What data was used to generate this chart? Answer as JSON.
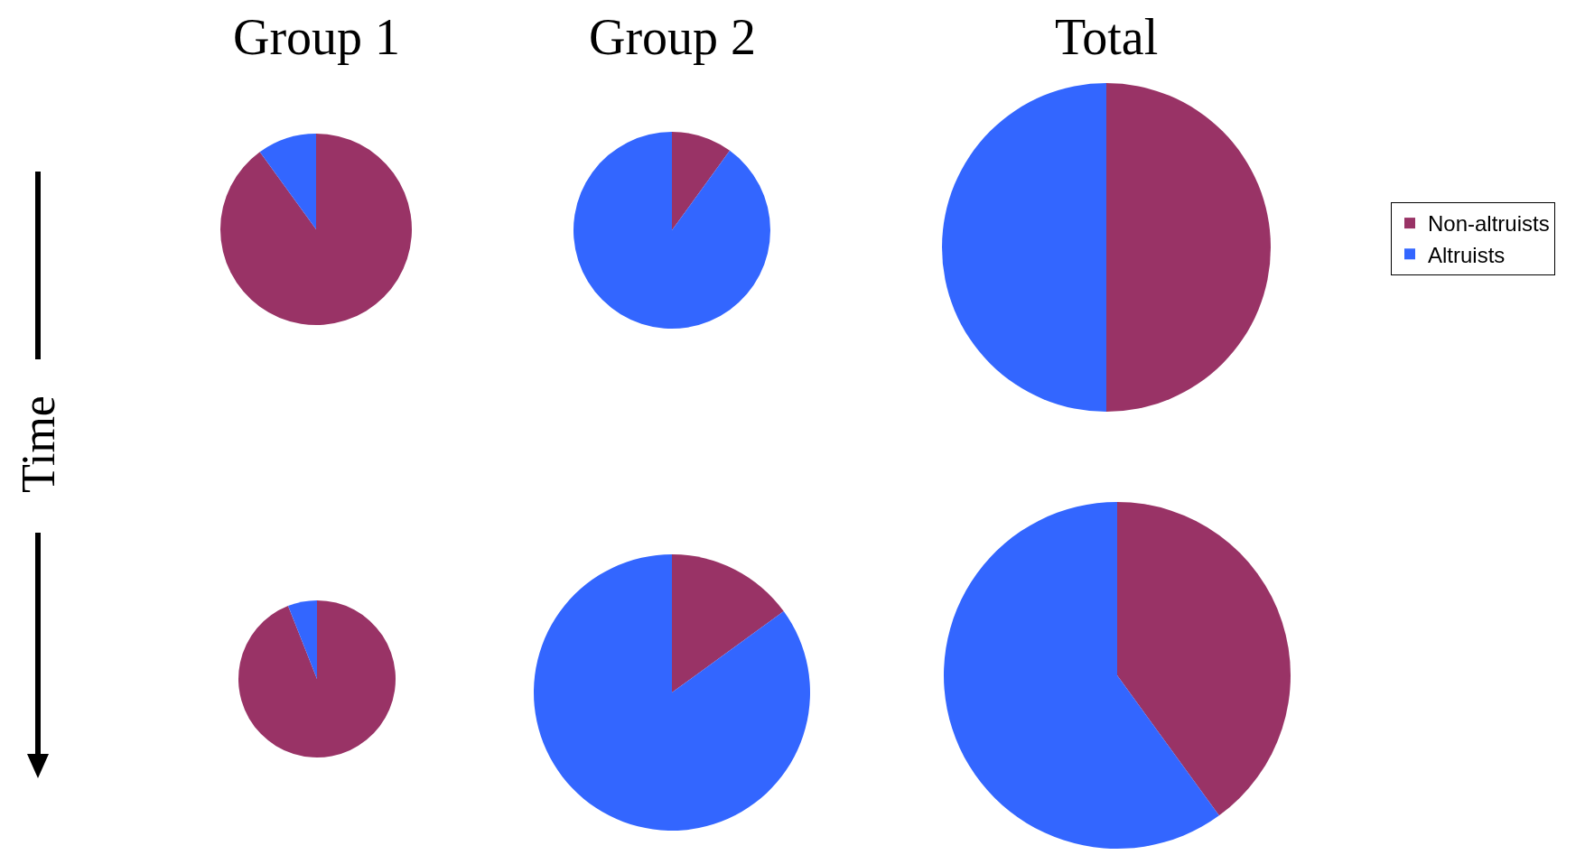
{
  "chart_data": [
    {
      "type": "pie",
      "title": "Group 1",
      "categories": [
        "Non-altruists",
        "Altruists"
      ],
      "values": [
        90,
        10
      ],
      "colors": [
        "#993366",
        "#3366ff"
      ],
      "legend": "right",
      "annotations": [
        "Time"
      ]
    },
    {
      "type": "pie",
      "title": "Group 2",
      "categories": [
        null,
        null
      ],
      "values": [
        10,
        90
      ],
      "colors": [
        "#993366",
        "#3366ff"
      ]
    },
    {
      "type": "pie",
      "title": "Total",
      "categories": [
        null,
        null
      ],
      "values": [
        50,
        50
      ],
      "colors": [
        "#993366",
        "#3366ff"
      ]
    },
    {
      "type": "pie",
      "categories": [
        null,
        null
      ],
      "values": [
        94,
        6
      ],
      "colors": [
        "#993366",
        "#3366ff"
      ]
    },
    {
      "type": "pie",
      "categories": [
        null,
        null
      ],
      "values": [
        15,
        85
      ],
      "colors": [
        "#993366",
        "#3366ff"
      ]
    },
    {
      "type": "pie",
      "categories": [
        null,
        null
      ],
      "values": [
        40,
        60
      ],
      "colors": [
        "#993366",
        "#3366ff"
      ]
    }
  ]
}
